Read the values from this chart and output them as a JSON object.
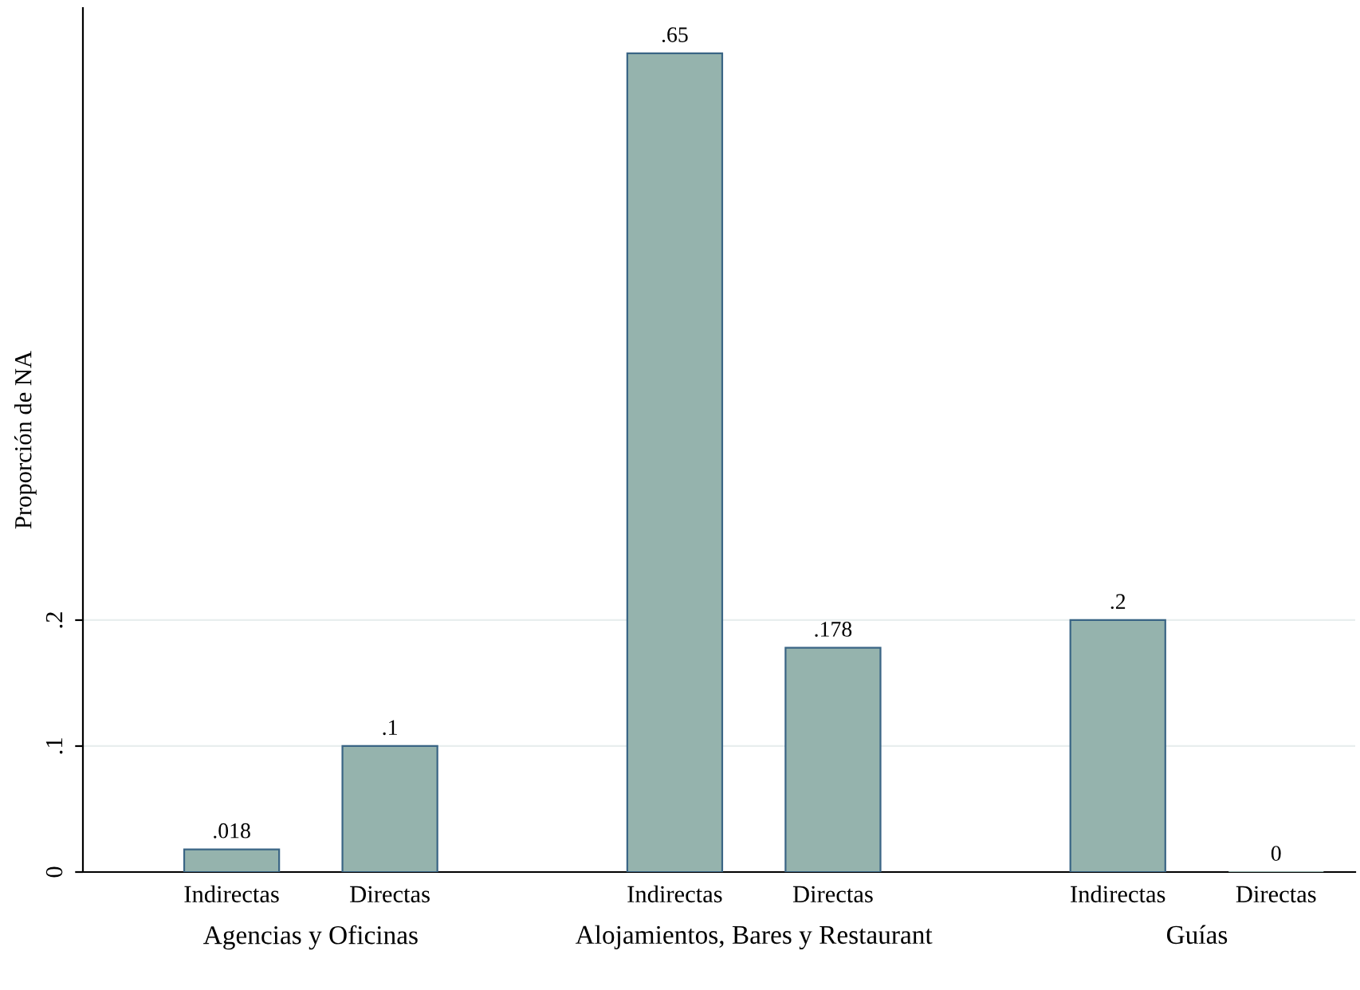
{
  "chart_data": {
    "type": "bar",
    "ylabel": "Proporción de NA",
    "categories": [
      "Indirectas",
      "Directas",
      "Indirectas",
      "Directas",
      "Indirectas",
      "Directas"
    ],
    "values": [
      0.018,
      0.1,
      0.65,
      0.178,
      0.2,
      0
    ],
    "value_labels": [
      ".018",
      ".1",
      ".65",
      ".178",
      ".2",
      "0"
    ],
    "color": "#95b3ad",
    "ylim": [
      0,
      0.686
    ],
    "yticks": [
      0,
      {
        "value": 0.1,
        "label": ".1"
      },
      {
        "value": 0.2,
        "label": ".2"
      }
    ],
    "grid": "y",
    "annotations": [
      "Agencias y Oficinas",
      "Alojamientos, Bares y Restaurant",
      "Guías"
    ]
  }
}
